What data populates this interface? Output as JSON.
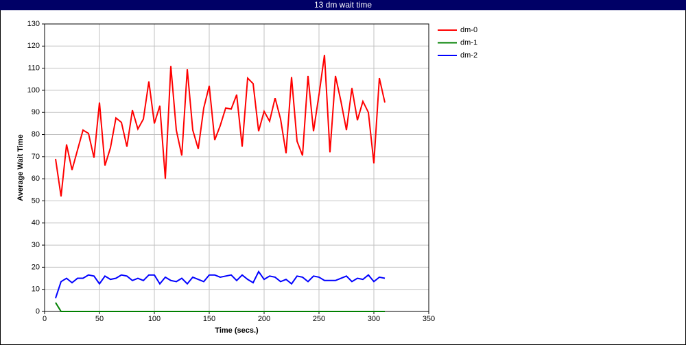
{
  "chart_data": {
    "type": "line",
    "title": "13 dm wait time",
    "x_label": "Time (secs.)",
    "y_label": "Average Wait Time",
    "x": [
      10,
      15,
      20,
      25,
      30,
      35,
      40,
      45,
      50,
      55,
      60,
      65,
      70,
      75,
      80,
      85,
      90,
      95,
      100,
      105,
      110,
      115,
      120,
      125,
      130,
      135,
      140,
      145,
      150,
      155,
      160,
      165,
      170,
      175,
      180,
      185,
      190,
      195,
      200,
      205,
      210,
      215,
      220,
      225,
      230,
      235,
      240,
      245,
      250,
      255,
      260,
      265,
      270,
      275,
      280,
      285,
      290,
      295,
      300,
      305,
      310
    ],
    "series": [
      {
        "name": "dm-0",
        "color": "#ff0000",
        "values": [
          69,
          52,
          75.5,
          64,
          73,
          82,
          80.5,
          69.5,
          94.5,
          66,
          74,
          87.5,
          85.5,
          74.5,
          91,
          82.5,
          87,
          104,
          85,
          93,
          60,
          111,
          82,
          70.5,
          109.5,
          82,
          73.5,
          92,
          102,
          77.5,
          84,
          92,
          91.5,
          98,
          74.5,
          105.5,
          103,
          81.5,
          90.5,
          86,
          96.5,
          87,
          71.5,
          106,
          77,
          70.5,
          106.5,
          81.5,
          98,
          116,
          72,
          106.5,
          95,
          82,
          101,
          86.5,
          95,
          90,
          67,
          105.5,
          94.5
        ]
      },
      {
        "name": "dm-1",
        "color": "#008000",
        "values": [
          4,
          0,
          0,
          0,
          0,
          0,
          0,
          0,
          0,
          0,
          0,
          0,
          0,
          0,
          0,
          0,
          0,
          0,
          0,
          0,
          0,
          0,
          0,
          0,
          0,
          0,
          0,
          0,
          0,
          0,
          0,
          0,
          0,
          0,
          0,
          0,
          0,
          0,
          0,
          0,
          0,
          0,
          0,
          0,
          0,
          0,
          0,
          0,
          0,
          0,
          0,
          0,
          0,
          0,
          0,
          0,
          0,
          0,
          0,
          0,
          0
        ]
      },
      {
        "name": "dm-2",
        "color": "#0000ff",
        "values": [
          6,
          13.5,
          15,
          13,
          15,
          15,
          16.5,
          16,
          12.5,
          16,
          14.5,
          15,
          16.5,
          16,
          14,
          15,
          14,
          16.5,
          16.5,
          12.5,
          15.5,
          14,
          13.5,
          15,
          12.5,
          15.5,
          14.5,
          13.5,
          16.5,
          16.5,
          15.5,
          16,
          16.5,
          14,
          16.5,
          14.5,
          13,
          18,
          14.5,
          16,
          15.5,
          13.5,
          14.5,
          12.5,
          16,
          15.5,
          13.5,
          16,
          15.5,
          14,
          14,
          14,
          15,
          16,
          13.5,
          15,
          14.5,
          16.5,
          13.5,
          15.5,
          15
        ]
      }
    ],
    "xlim": [
      0,
      350
    ],
    "xticks": [
      0,
      50,
      100,
      150,
      200,
      250,
      300,
      350
    ],
    "ylim": [
      0,
      130
    ],
    "yticks": [
      0,
      10,
      20,
      30,
      40,
      50,
      60,
      70,
      80,
      90,
      100,
      110,
      120,
      130
    ],
    "grid": true,
    "legend": "right"
  }
}
